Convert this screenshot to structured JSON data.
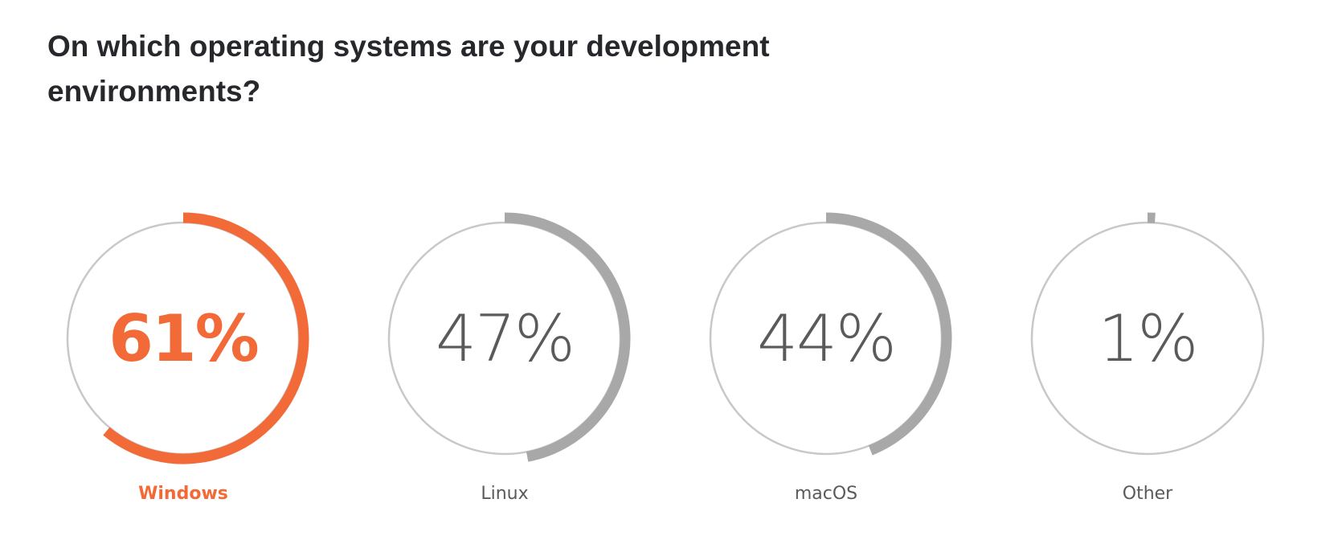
{
  "question": {
    "title": "On which operating systems are your development environments?"
  },
  "chart_data": {
    "type": "radial-progress",
    "title": "On which operating systems are your development environments?",
    "categories": [
      "Windows",
      "Linux",
      "macOS",
      "Other"
    ],
    "values": [
      61,
      47,
      44,
      1
    ],
    "value_labels": [
      "61%",
      "47%",
      "44%",
      "1%"
    ],
    "unit": "%",
    "range": [
      0,
      100
    ],
    "highlight_index": 0
  },
  "colors": {
    "highlight": "#f26a37",
    "progress": "#a8a8a8",
    "ring": "#c8c8c8",
    "value_text": "#5a5a5a",
    "label_text": "#5a5a5a",
    "title_text": "#27282c"
  }
}
